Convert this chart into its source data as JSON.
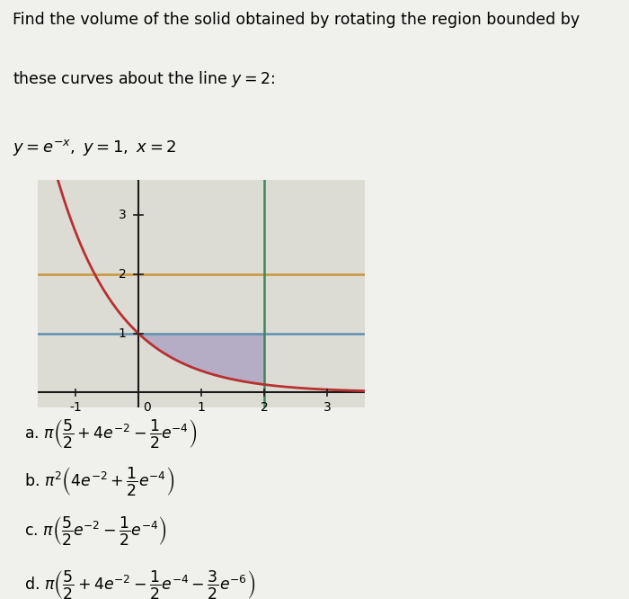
{
  "title_line1": "Find the volume of the solid obtained by rotating the region bounded by",
  "title_line2": "these curves about the line $y = 2$:",
  "equation_label": "$y = e^{-x},\\ y = 1,\\ x = 2$",
  "bg_color": "#f0f0ec",
  "plot_bg": "#dcdcd4",
  "curve_color": "#b83030",
  "line_y1_color": "#6090b0",
  "line_y2_color": "#c8963c",
  "line_x2_color": "#3a8a5a",
  "axis_color": "#1a1a1a",
  "fill_color": "#9080b8",
  "fill_alpha": 0.5,
  "xlim": [
    -1.6,
    3.6
  ],
  "ylim": [
    -0.25,
    3.6
  ],
  "xticks": [
    -1,
    0,
    1,
    2,
    3
  ],
  "ytick_3": 3,
  "ytick_2": 2,
  "ytick_1": 1,
  "answer_a": "a. $\\pi\\left(\\dfrac{5}{2} + 4e^{-2} - \\dfrac{1}{2}e^{-4}\\right)$",
  "answer_b": "b. $\\pi^2\\left(4e^{-2} + \\dfrac{1}{2}e^{-4}\\right)$",
  "answer_c": "c. $\\pi\\left(\\dfrac{5}{2}e^{-2} - \\dfrac{1}{2}e^{-4}\\right)$",
  "answer_d": "d. $\\pi\\left(\\dfrac{5}{2} + 4e^{-2} - \\dfrac{1}{2}e^{-4} - \\dfrac{3}{2}e^{-6}\\right)$",
  "title_fontsize": 12.5,
  "eq_fontsize": 13,
  "tick_fontsize": 10,
  "answer_fontsize": 12.5
}
